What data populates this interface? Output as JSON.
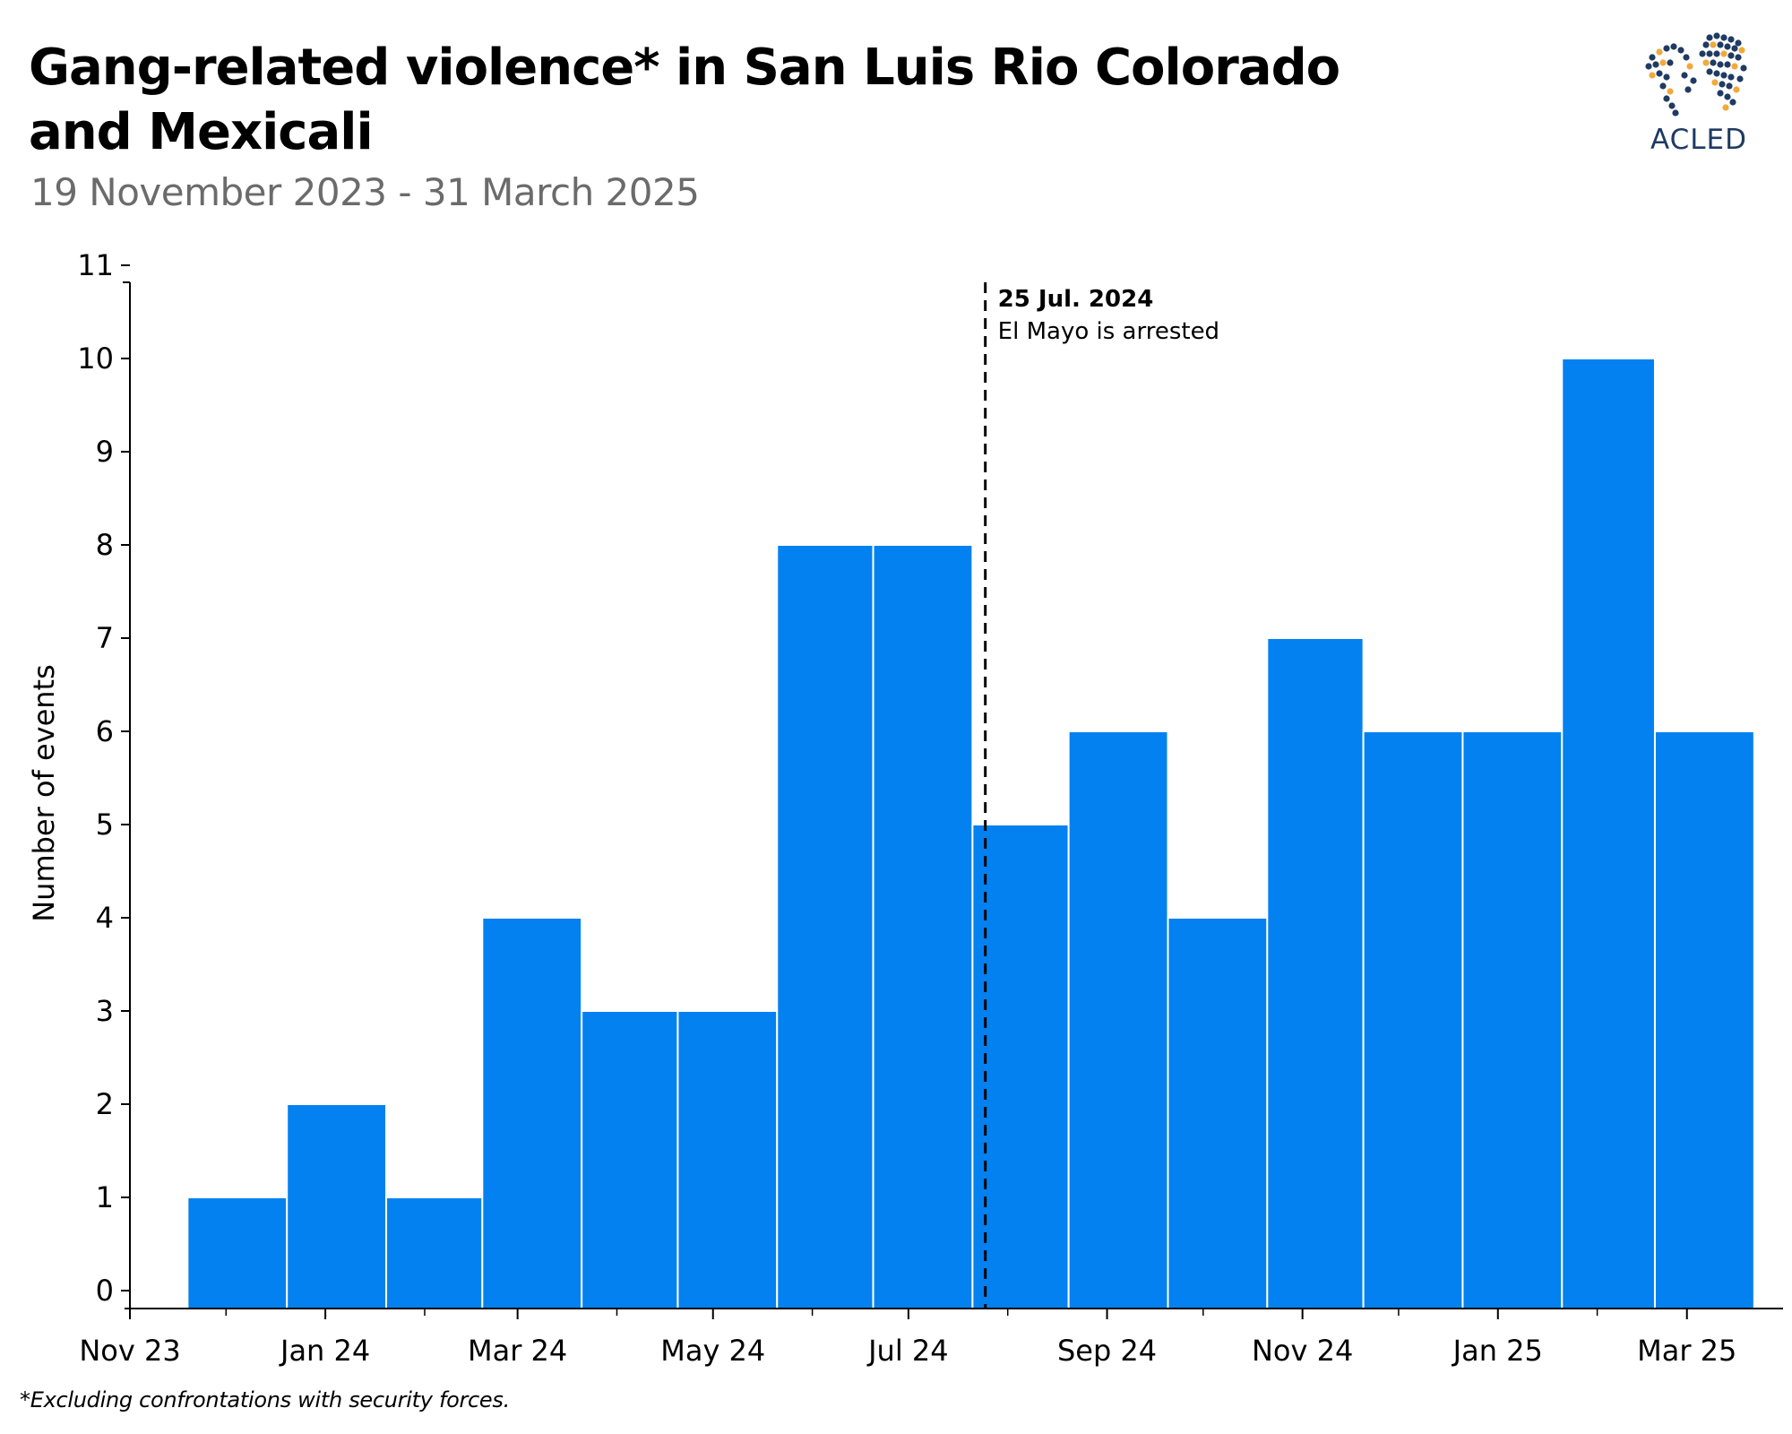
{
  "header": {
    "title": "Gang-related violence* in San Luis Rio Colorado and Mexicali",
    "subtitle": "19 November 2023 - 31 March 2025"
  },
  "logo": {
    "text": "ACLED",
    "icon": "acled-world-dots-logo"
  },
  "footnote": "*Excluding confrontations with security forces.",
  "chart_data": {
    "type": "bar",
    "title": "Gang-related violence* in San Luis Rio Colorado and Mexicali",
    "subtitle": "19 November 2023 - 31 March 2025",
    "ylabel": "Number of events",
    "xlabel": "",
    "ylim": [
      0,
      11
    ],
    "yticks": [
      0,
      1,
      2,
      3,
      4,
      5,
      6,
      7,
      8,
      9,
      10,
      11
    ],
    "bar_color": "#0381f0",
    "x_date_range": [
      "2023-11-01",
      "2025-03-31"
    ],
    "x_tick_labels": [
      {
        "label": "Nov 23",
        "date": "2023-11-01"
      },
      {
        "label": "Jan 24",
        "date": "2024-01-01"
      },
      {
        "label": "Mar 24",
        "date": "2024-03-01"
      },
      {
        "label": "May 24",
        "date": "2024-05-01"
      },
      {
        "label": "Jul 24",
        "date": "2024-07-01"
      },
      {
        "label": "Sep 24",
        "date": "2024-09-01"
      },
      {
        "label": "Nov 24",
        "date": "2024-11-01"
      },
      {
        "label": "Jan 25",
        "date": "2025-01-01"
      },
      {
        "label": "Mar 25",
        "date": "2025-03-01"
      }
    ],
    "x_minor_ticks": [
      "2023-12-01",
      "2024-02-01",
      "2024-04-01",
      "2024-06-01",
      "2024-08-01",
      "2024-10-01",
      "2024-12-01",
      "2025-02-01"
    ],
    "bars": [
      {
        "start": "2023-11-19",
        "end": "2023-12-20",
        "value": 1
      },
      {
        "start": "2023-12-20",
        "end": "2024-01-20",
        "value": 2
      },
      {
        "start": "2024-01-20",
        "end": "2024-02-19",
        "value": 1
      },
      {
        "start": "2024-02-19",
        "end": "2024-03-21",
        "value": 4
      },
      {
        "start": "2024-03-21",
        "end": "2024-04-20",
        "value": 3
      },
      {
        "start": "2024-04-20",
        "end": "2024-05-21",
        "value": 3
      },
      {
        "start": "2024-05-21",
        "end": "2024-06-20",
        "value": 8
      },
      {
        "start": "2024-06-20",
        "end": "2024-07-21",
        "value": 8
      },
      {
        "start": "2024-07-21",
        "end": "2024-08-20",
        "value": 5
      },
      {
        "start": "2024-08-20",
        "end": "2024-09-20",
        "value": 6
      },
      {
        "start": "2024-09-20",
        "end": "2024-10-21",
        "value": 4
      },
      {
        "start": "2024-10-21",
        "end": "2024-11-20",
        "value": 7
      },
      {
        "start": "2024-11-20",
        "end": "2024-12-21",
        "value": 6
      },
      {
        "start": "2024-12-21",
        "end": "2025-01-21",
        "value": 6
      },
      {
        "start": "2025-01-21",
        "end": "2025-02-19",
        "value": 10
      },
      {
        "start": "2025-02-19",
        "end": "2025-03-22",
        "value": 6
      }
    ],
    "annotation": {
      "date": "2024-07-25",
      "title": "25 Jul. 2024",
      "text": "El Mayo is arrested",
      "line_style": "dashed"
    },
    "grid": false,
    "legend": "none"
  }
}
